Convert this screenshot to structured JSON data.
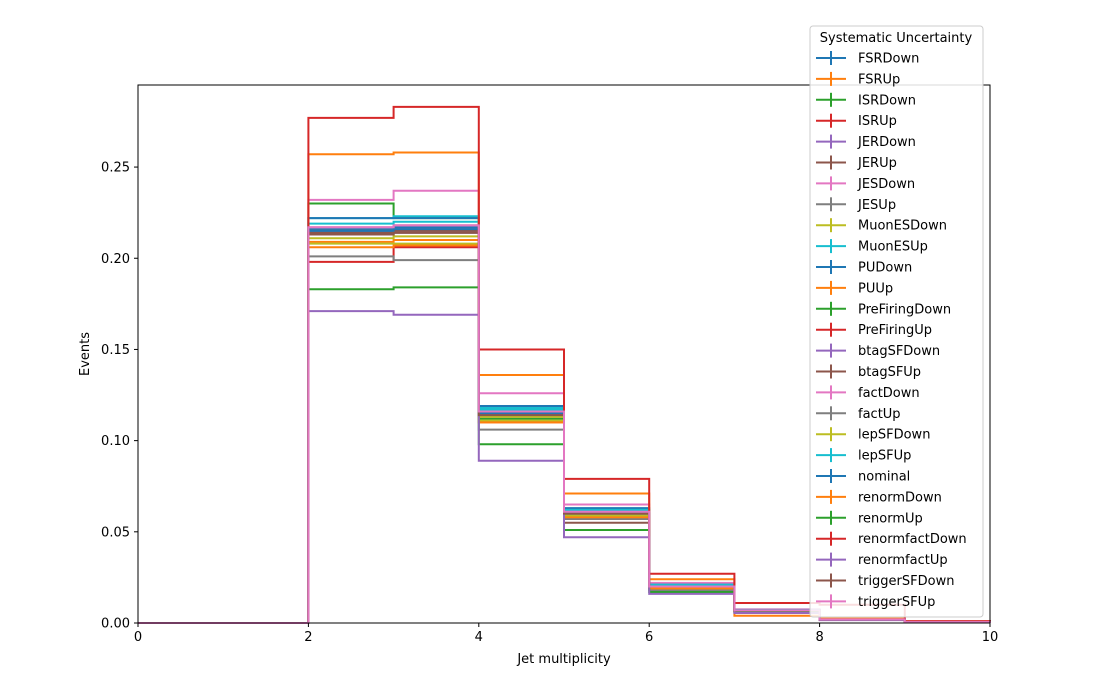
{
  "chart_data": {
    "type": "line",
    "style": "step-histogram",
    "xlabel": "Jet multiplicity",
    "ylabel": "Events",
    "xlim": [
      0,
      10
    ],
    "ylim": [
      0,
      0.295
    ],
    "x_ticks": [
      0,
      2,
      4,
      6,
      8,
      10
    ],
    "x_tick_labels": [
      "0",
      "2",
      "4",
      "6",
      "8",
      "10"
    ],
    "y_ticks": [
      0,
      0.05,
      0.1,
      0.15,
      0.2,
      0.25
    ],
    "y_tick_labels": [
      "0.00",
      "0.05",
      "0.10",
      "0.15",
      "0.20",
      "0.25"
    ],
    "bin_edges": [
      0,
      1,
      2,
      3,
      4,
      5,
      6,
      7,
      8,
      9,
      10
    ],
    "grid": false,
    "legend": {
      "title": "Systematic Uncertainty",
      "placement": "top-right, extending above plot"
    },
    "series": [
      {
        "name": "FSRDown",
        "color": "#1f77b4",
        "values": [
          0,
          0,
          0.216,
          0.217,
          0.117,
          0.061,
          0.02,
          0.007,
          0.002,
          0.0005
        ]
      },
      {
        "name": "FSRUp",
        "color": "#ff7f0e",
        "values": [
          0,
          0,
          0.209,
          0.21,
          0.11,
          0.058,
          0.019,
          0.0065,
          0.0018,
          0.0004
        ]
      },
      {
        "name": "ISRDown",
        "color": "#2ca02c",
        "values": [
          0,
          0,
          0.23,
          0.222,
          0.112,
          0.059,
          0.02,
          0.0068,
          0.0019,
          0.0005
        ]
      },
      {
        "name": "ISRUp",
        "color": "#d62728",
        "values": [
          0,
          0,
          0.198,
          0.206,
          0.116,
          0.062,
          0.021,
          0.0072,
          0.0021,
          0.0005
        ]
      },
      {
        "name": "JERDown",
        "color": "#9467bd",
        "values": [
          0,
          0,
          0.213,
          0.214,
          0.113,
          0.06,
          0.019,
          0.0066,
          0.0019,
          0.0004
        ]
      },
      {
        "name": "JERUp",
        "color": "#8c564b",
        "values": [
          0,
          0,
          0.215,
          0.218,
          0.114,
          0.055,
          0.02,
          0.0067,
          0.0019,
          0.0004
        ]
      },
      {
        "name": "JESDown",
        "color": "#e377c2",
        "values": [
          0,
          0,
          0.232,
          0.237,
          0.126,
          0.065,
          0.022,
          0.0075,
          0.0022,
          0.0006
        ]
      },
      {
        "name": "JESUp",
        "color": "#7f7f7f",
        "values": [
          0,
          0,
          0.201,
          0.199,
          0.106,
          0.057,
          0.018,
          0.006,
          0.0017,
          0.0004
        ]
      },
      {
        "name": "MuonESDown",
        "color": "#bcbd22",
        "values": [
          0,
          0,
          0.208,
          0.208,
          0.111,
          0.059,
          0.019,
          0.0066,
          0.0019,
          0.0005
        ]
      },
      {
        "name": "MuonESUp",
        "color": "#17becf",
        "values": [
          0,
          0,
          0.222,
          0.223,
          0.118,
          0.062,
          0.021,
          0.0071,
          0.002,
          0.0005
        ]
      },
      {
        "name": "PUDown",
        "color": "#1f77b4",
        "values": [
          0,
          0,
          0.222,
          0.222,
          0.119,
          0.063,
          0.021,
          0.0072,
          0.0021,
          0.0005
        ]
      },
      {
        "name": "PUUp",
        "color": "#ff7f0e",
        "values": [
          0,
          0,
          0.206,
          0.207,
          0.11,
          0.058,
          0.019,
          0.0064,
          0.0018,
          0.0004
        ]
      },
      {
        "name": "PreFiringDown",
        "color": "#2ca02c",
        "values": [
          0,
          0,
          0.215,
          0.216,
          0.115,
          0.06,
          0.02,
          0.0069,
          0.002,
          0.0005
        ]
      },
      {
        "name": "PreFiringUp",
        "color": "#d62728",
        "values": [
          0,
          0,
          0.214,
          0.215,
          0.114,
          0.06,
          0.02,
          0.0068,
          0.002,
          0.0005
        ]
      },
      {
        "name": "btagSFDown",
        "color": "#9467bd",
        "values": [
          0,
          0,
          0.215,
          0.216,
          0.115,
          0.061,
          0.02,
          0.0069,
          0.002,
          0.0005
        ]
      },
      {
        "name": "btagSFUp",
        "color": "#8c564b",
        "values": [
          0,
          0,
          0.214,
          0.215,
          0.114,
          0.06,
          0.02,
          0.0068,
          0.002,
          0.0005
        ]
      },
      {
        "name": "factDown",
        "color": "#e377c2",
        "values": [
          0,
          0,
          0.217,
          0.218,
          0.116,
          0.061,
          0.02,
          0.0069,
          0.002,
          0.0005
        ]
      },
      {
        "name": "factUp",
        "color": "#7f7f7f",
        "values": [
          0,
          0,
          0.213,
          0.214,
          0.114,
          0.06,
          0.02,
          0.0068,
          0.002,
          0.0005
        ]
      },
      {
        "name": "lepSFDown",
        "color": "#bcbd22",
        "values": [
          0,
          0,
          0.211,
          0.212,
          0.113,
          0.059,
          0.02,
          0.0067,
          0.0019,
          0.0005
        ]
      },
      {
        "name": "lepSFUp",
        "color": "#17becf",
        "values": [
          0,
          0,
          0.219,
          0.22,
          0.117,
          0.062,
          0.021,
          0.007,
          0.002,
          0.0005
        ]
      },
      {
        "name": "nominal",
        "color": "#1f77b4",
        "values": [
          0,
          0,
          0.215,
          0.216,
          0.115,
          0.06,
          0.02,
          0.0068,
          0.002,
          0.0005
        ]
      },
      {
        "name": "renormDown",
        "color": "#ff7f0e",
        "values": [
          0,
          0,
          0.257,
          0.258,
          0.136,
          0.071,
          0.024,
          0.004,
          0.0024,
          0.0006
        ]
      },
      {
        "name": "renormUp",
        "color": "#2ca02c",
        "values": [
          0,
          0,
          0.183,
          0.184,
          0.098,
          0.051,
          0.017,
          0.0058,
          0.0017,
          0.0004
        ]
      },
      {
        "name": "renormfactDown",
        "color": "#d62728",
        "values": [
          0,
          0,
          0.277,
          0.283,
          0.15,
          0.079,
          0.027,
          0.011,
          0.01,
          0.001
        ]
      },
      {
        "name": "renormfactUp",
        "color": "#9467bd",
        "values": [
          0,
          0,
          0.171,
          0.169,
          0.089,
          0.047,
          0.016,
          0.0055,
          0.0016,
          0.0004
        ]
      },
      {
        "name": "triggerSFDown",
        "color": "#8c564b",
        "values": [
          0,
          0,
          0.213,
          0.214,
          0.114,
          0.06,
          0.02,
          0.0068,
          0.0019,
          0.0005
        ]
      },
      {
        "name": "triggerSFUp",
        "color": "#e377c2",
        "values": [
          0,
          0,
          0.217,
          0.218,
          0.116,
          0.061,
          0.02,
          0.0069,
          0.002,
          0.0005
        ]
      }
    ]
  }
}
